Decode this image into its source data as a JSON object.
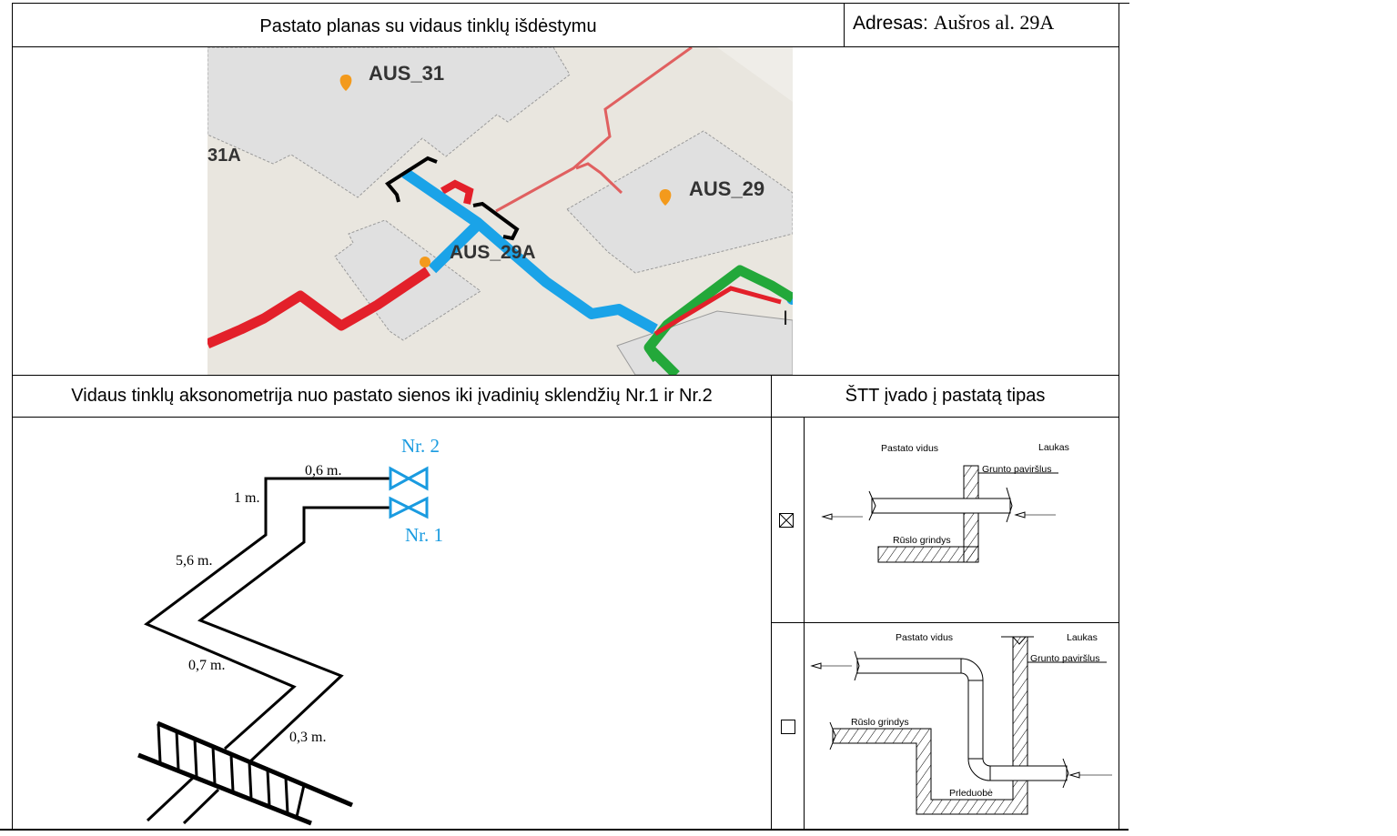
{
  "header": {
    "title": "Pastato planas su vidaus tinklų išdėstymu",
    "address_label": "Adresas:",
    "address_value": "Aušros al. 29A"
  },
  "map": {
    "labels": [
      "AUS_31",
      "31A",
      "AUS_29",
      "AUS_29A",
      "I"
    ],
    "colors": {
      "background": "#e9e6df",
      "building": "#e0e0e0",
      "supply": "#e3202a",
      "blue": "#1aa3e8",
      "green": "#23a83a",
      "marker": "#f39a1c"
    }
  },
  "section2": {
    "left_title": "Vidaus tinklų aksonometrija nuo pastato sienos iki įvadinių sklendžių Nr.1 ir Nr.2",
    "right_title": "ŠTT įvado į pastatą tipas"
  },
  "axonometry": {
    "valve_labels": [
      "Nr. 2",
      "Nr. 1"
    ],
    "dimensions": [
      "0,6 m.",
      "1 m.",
      "5,6 m.",
      "0,7 m.",
      "0,3 m."
    ],
    "valve_color": "#1a9be0"
  },
  "entry_types": [
    {
      "checked": true,
      "labels": {
        "inside": "Pastato vidus",
        "outside": "Laukas",
        "ground": "Grunto paviršlus",
        "floor": "Rūslo grindys"
      }
    },
    {
      "checked": false,
      "labels": {
        "inside": "Pastato vidus",
        "outside": "Laukas",
        "ground": "Grunto paviršlus",
        "floor": "Rūslo grindys",
        "pit": "Prleduobė"
      }
    }
  ]
}
